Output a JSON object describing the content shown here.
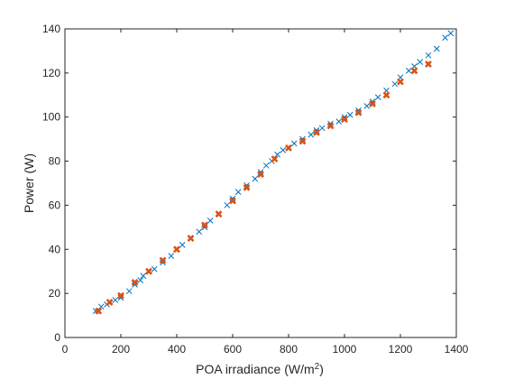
{
  "chart_data": {
    "type": "scatter",
    "title": "",
    "xlabel": "POA irradiance (W/m",
    "xlabel_sup": "2",
    "xlabel_end": ")",
    "ylabel": "Power (W)",
    "xlim": [
      0,
      1400
    ],
    "ylim": [
      0,
      140
    ],
    "xticks": [
      "0",
      "200",
      "400",
      "600",
      "800",
      "1000",
      "1200",
      "1400"
    ],
    "yticks": [
      "0",
      "20",
      "40",
      "60",
      "80",
      "100",
      "120",
      "140"
    ],
    "grid": false,
    "legend": "none",
    "series": [
      {
        "marker": "x",
        "color": "#0072bd",
        "points": [
          [
            110,
            12
          ],
          [
            130,
            14
          ],
          [
            150,
            15
          ],
          [
            180,
            17
          ],
          [
            200,
            18
          ],
          [
            230,
            21
          ],
          [
            250,
            24
          ],
          [
            270,
            26
          ],
          [
            280,
            28
          ],
          [
            300,
            30
          ],
          [
            320,
            31
          ],
          [
            350,
            34
          ],
          [
            380,
            37
          ],
          [
            400,
            40
          ],
          [
            420,
            42
          ],
          [
            450,
            45
          ],
          [
            480,
            48
          ],
          [
            500,
            50
          ],
          [
            520,
            53
          ],
          [
            550,
            56
          ],
          [
            580,
            60
          ],
          [
            600,
            63
          ],
          [
            620,
            66
          ],
          [
            650,
            69
          ],
          [
            680,
            72
          ],
          [
            700,
            75
          ],
          [
            720,
            78
          ],
          [
            740,
            80
          ],
          [
            760,
            83
          ],
          [
            780,
            85
          ],
          [
            800,
            86
          ],
          [
            820,
            88
          ],
          [
            850,
            90
          ],
          [
            880,
            92
          ],
          [
            900,
            94
          ],
          [
            920,
            95
          ],
          [
            950,
            97
          ],
          [
            980,
            98
          ],
          [
            1000,
            100
          ],
          [
            1020,
            101
          ],
          [
            1050,
            103
          ],
          [
            1080,
            105
          ],
          [
            1100,
            107
          ],
          [
            1120,
            109
          ],
          [
            1150,
            112
          ],
          [
            1180,
            115
          ],
          [
            1200,
            118
          ],
          [
            1230,
            121
          ],
          [
            1250,
            123
          ],
          [
            1270,
            125
          ],
          [
            1300,
            128
          ],
          [
            1330,
            131
          ],
          [
            1360,
            136
          ],
          [
            1380,
            138
          ]
        ]
      },
      {
        "marker": "x",
        "color": "#d95319",
        "points": [
          [
            120,
            12
          ],
          [
            160,
            16
          ],
          [
            200,
            19
          ],
          [
            250,
            25
          ],
          [
            300,
            30
          ],
          [
            350,
            35
          ],
          [
            400,
            40
          ],
          [
            450,
            45
          ],
          [
            500,
            51
          ],
          [
            550,
            56
          ],
          [
            600,
            62
          ],
          [
            650,
            68
          ],
          [
            700,
            74
          ],
          [
            750,
            81
          ],
          [
            800,
            86
          ],
          [
            850,
            89
          ],
          [
            900,
            93
          ],
          [
            950,
            96
          ],
          [
            1000,
            99
          ],
          [
            1050,
            102
          ],
          [
            1100,
            106
          ],
          [
            1150,
            110
          ],
          [
            1200,
            116
          ],
          [
            1250,
            121
          ],
          [
            1300,
            124
          ]
        ]
      }
    ]
  }
}
